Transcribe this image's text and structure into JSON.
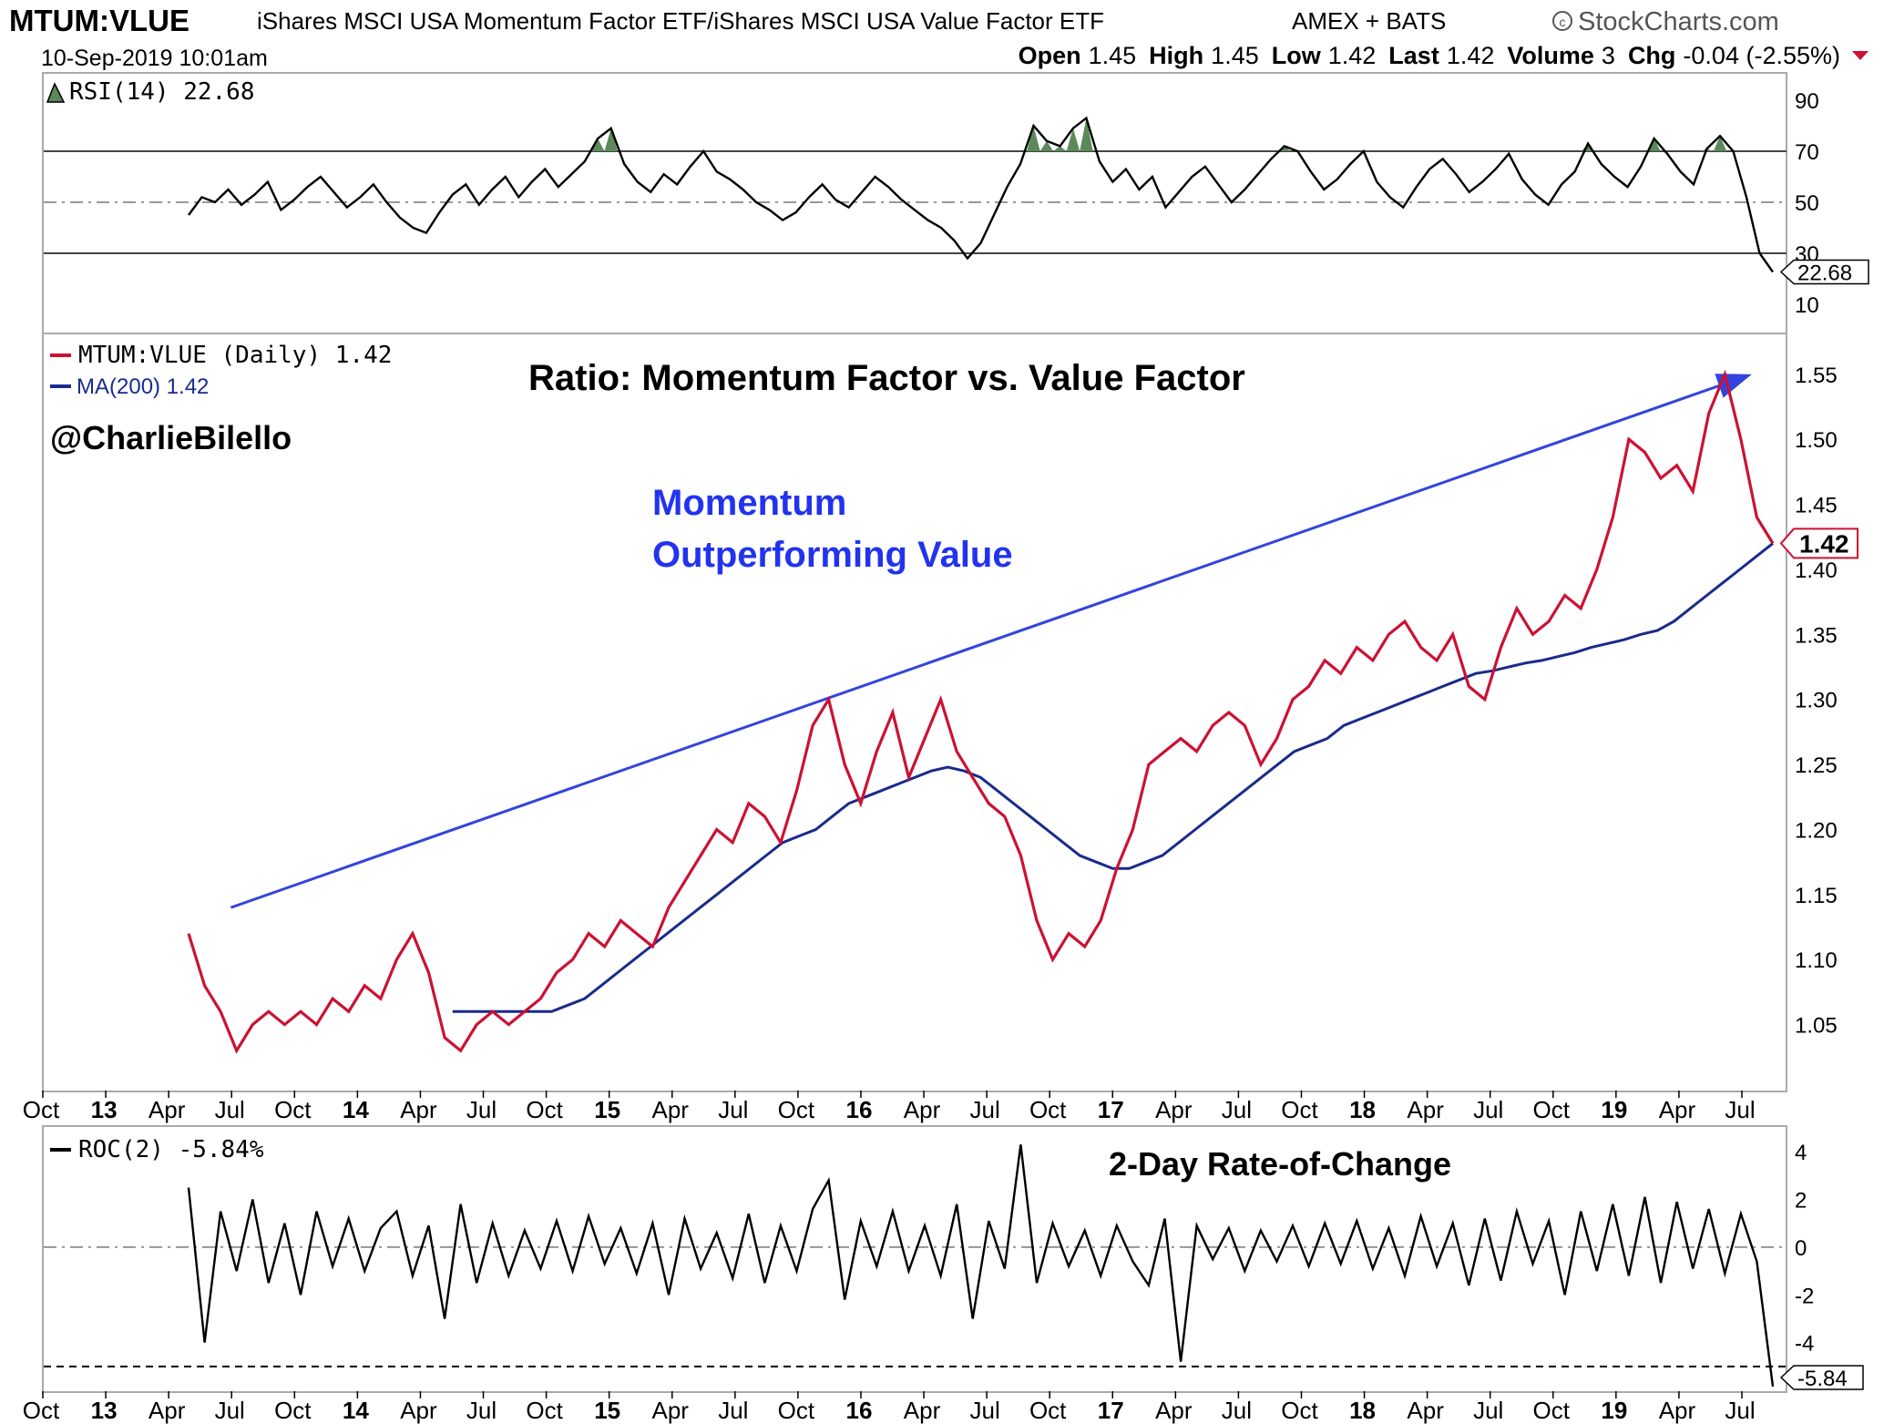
{
  "header": {
    "symbol": "MTUM:VLUE",
    "description": "iShares MSCI USA Momentum Factor ETF/iShares MSCI USA Value Factor ETF",
    "exchange": "AMEX + BATS",
    "brand": "StockCharts.com",
    "date": "10-Sep-2019 10:01am",
    "stats": [
      {
        "label": "Open",
        "value": "1.45"
      },
      {
        "label": "High",
        "value": "1.45"
      },
      {
        "label": "Low",
        "value": "1.42"
      },
      {
        "label": "Last",
        "value": "1.42"
      },
      {
        "label": "Volume",
        "value": "3"
      },
      {
        "label": "Chg",
        "value": "-0.04 (-2.55%)"
      }
    ]
  },
  "x_axis_labels": [
    {
      "label": "Oct",
      "bold": false
    },
    {
      "label": "13",
      "bold": true
    },
    {
      "label": "Apr",
      "bold": false
    },
    {
      "label": "Jul",
      "bold": false
    },
    {
      "label": "Oct",
      "bold": false
    },
    {
      "label": "14",
      "bold": true
    },
    {
      "label": "Apr",
      "bold": false
    },
    {
      "label": "Jul",
      "bold": false
    },
    {
      "label": "Oct",
      "bold": false
    },
    {
      "label": "15",
      "bold": true
    },
    {
      "label": "Apr",
      "bold": false
    },
    {
      "label": "Jul",
      "bold": false
    },
    {
      "label": "Oct",
      "bold": false
    },
    {
      "label": "16",
      "bold": true
    },
    {
      "label": "Apr",
      "bold": false
    },
    {
      "label": "Jul",
      "bold": false
    },
    {
      "label": "Oct",
      "bold": false
    },
    {
      "label": "17",
      "bold": true
    },
    {
      "label": "Apr",
      "bold": false
    },
    {
      "label": "Jul",
      "bold": false
    },
    {
      "label": "Oct",
      "bold": false
    },
    {
      "label": "18",
      "bold": true
    },
    {
      "label": "Apr",
      "bold": false
    },
    {
      "label": "Jul",
      "bold": false
    },
    {
      "label": "Oct",
      "bold": false
    },
    {
      "label": "19",
      "bold": true
    },
    {
      "label": "Apr",
      "bold": false
    },
    {
      "label": "Jul",
      "bold": false
    }
  ],
  "chart_data": [
    {
      "type": "line",
      "panel": "rsi",
      "legend": "RSI(14) 22.68",
      "ylim": [
        0,
        100
      ],
      "yticks": [
        10,
        30,
        50,
        70,
        90
      ],
      "reference_lines": [
        30,
        50,
        70
      ],
      "last_value_label": "22.68",
      "colors": {
        "line": "#000000",
        "overbought_fill": "#5a8a5a"
      },
      "x_start": "2013-06",
      "x_end": "2019-09",
      "series": [
        {
          "values": [
            45,
            52,
            50,
            55,
            49,
            53,
            58,
            47,
            51,
            56,
            60,
            54,
            48,
            52,
            57,
            50,
            44,
            40,
            38,
            46,
            53,
            57,
            49,
            55,
            60,
            52,
            58,
            63,
            56,
            61,
            66,
            75,
            79,
            65,
            58,
            54,
            61,
            57,
            64,
            70,
            62,
            59,
            55,
            50,
            47,
            43,
            46,
            52,
            57,
            51,
            48,
            54,
            60,
            56,
            51,
            47,
            43,
            40,
            35,
            28,
            34,
            45,
            56,
            65,
            80,
            74,
            72,
            79,
            83,
            66,
            58,
            63,
            55,
            60,
            48,
            54,
            60,
            64,
            57,
            50,
            55,
            61,
            67,
            72,
            70,
            62,
            55,
            59,
            65,
            70,
            58,
            52,
            48,
            56,
            63,
            67,
            61,
            54,
            58,
            63,
            69,
            59,
            53,
            49,
            57,
            62,
            73,
            65,
            60,
            56,
            64,
            75,
            69,
            62,
            57,
            71,
            76,
            70,
            52,
            30,
            22.68
          ]
        }
      ]
    },
    {
      "type": "line",
      "panel": "price",
      "title": "Ratio: Momentum Factor vs. Value Factor",
      "ylim": [
        1.0,
        1.58
      ],
      "yticks": [
        1.05,
        1.1,
        1.15,
        1.2,
        1.25,
        1.3,
        1.35,
        1.4,
        1.45,
        1.5,
        1.55
      ],
      "grid": false,
      "legend_placement": "top-left",
      "last_value_label": "1.42",
      "x_start": "2013-06",
      "x_end": "2019-09",
      "series": [
        {
          "name": "MTUM:VLUE (Daily) 1.42",
          "color": "#cc1133",
          "values": [
            1.12,
            1.08,
            1.06,
            1.03,
            1.05,
            1.06,
            1.05,
            1.06,
            1.05,
            1.07,
            1.06,
            1.08,
            1.07,
            1.1,
            1.12,
            1.09,
            1.04,
            1.03,
            1.05,
            1.06,
            1.05,
            1.06,
            1.07,
            1.09,
            1.1,
            1.12,
            1.11,
            1.13,
            1.12,
            1.11,
            1.14,
            1.16,
            1.18,
            1.2,
            1.19,
            1.22,
            1.21,
            1.19,
            1.23,
            1.28,
            1.3,
            1.25,
            1.22,
            1.26,
            1.29,
            1.24,
            1.27,
            1.3,
            1.26,
            1.24,
            1.22,
            1.21,
            1.18,
            1.13,
            1.1,
            1.12,
            1.11,
            1.13,
            1.17,
            1.2,
            1.25,
            1.26,
            1.27,
            1.26,
            1.28,
            1.29,
            1.28,
            1.25,
            1.27,
            1.3,
            1.31,
            1.33,
            1.32,
            1.34,
            1.33,
            1.35,
            1.36,
            1.34,
            1.33,
            1.35,
            1.31,
            1.3,
            1.34,
            1.37,
            1.35,
            1.36,
            1.38,
            1.37,
            1.4,
            1.44,
            1.5,
            1.49,
            1.47,
            1.48,
            1.46,
            1.52,
            1.55,
            1.5,
            1.44,
            1.42
          ]
        },
        {
          "name": "MA(200) 1.42",
          "color": "#1a2a8c",
          "values": [
            null,
            null,
            null,
            null,
            null,
            null,
            null,
            null,
            null,
            null,
            null,
            null,
            null,
            null,
            null,
            null,
            1.06,
            1.06,
            1.06,
            1.06,
            1.06,
            1.06,
            1.06,
            1.065,
            1.07,
            1.08,
            1.09,
            1.1,
            1.11,
            1.12,
            1.13,
            1.14,
            1.15,
            1.16,
            1.17,
            1.18,
            1.19,
            1.195,
            1.2,
            1.21,
            1.22,
            1.225,
            1.23,
            1.235,
            1.24,
            1.245,
            1.248,
            1.245,
            1.24,
            1.23,
            1.22,
            1.21,
            1.2,
            1.19,
            1.18,
            1.175,
            1.17,
            1.17,
            1.175,
            1.18,
            1.19,
            1.2,
            1.21,
            1.22,
            1.23,
            1.24,
            1.25,
            1.26,
            1.265,
            1.27,
            1.28,
            1.285,
            1.29,
            1.295,
            1.3,
            1.305,
            1.31,
            1.315,
            1.32,
            1.322,
            1.325,
            1.328,
            1.33,
            1.333,
            1.336,
            1.34,
            1.343,
            1.346,
            1.35,
            1.353,
            1.36,
            1.37,
            1.38,
            1.39,
            1.4,
            1.41,
            1.42
          ]
        }
      ],
      "trend_arrow": {
        "from": [
          "2013-08",
          1.14
        ],
        "to": [
          "2019-08",
          1.55
        ],
        "color": "#3344dd"
      },
      "annotations": [
        {
          "text": "@CharlieBilello",
          "color": "#000000"
        },
        {
          "text": "Momentum",
          "color": "#2233ee"
        },
        {
          "text": "Outperforming Value",
          "color": "#2233ee"
        }
      ]
    },
    {
      "type": "line",
      "panel": "roc",
      "legend": "ROC(2) -5.84%",
      "title": "2-Day Rate-of-Change",
      "ylim": [
        -6,
        5
      ],
      "yticks": [
        -4,
        -2,
        0,
        2,
        4
      ],
      "reference_lines": [
        0,
        -5
      ],
      "last_value_label": "-5.84",
      "x_start": "2013-06",
      "x_end": "2019-09",
      "series": [
        {
          "values": [
            2.5,
            -4,
            1.5,
            -1,
            2,
            -1.5,
            1,
            -2,
            1.5,
            -0.8,
            1.2,
            -1,
            0.8,
            1.5,
            -1.2,
            0.9,
            -3,
            1.8,
            -1.5,
            1,
            -1.2,
            0.7,
            -0.9,
            1.1,
            -1,
            1.3,
            -0.7,
            0.8,
            -1.1,
            1,
            -2,
            1.2,
            -0.9,
            0.6,
            -1.3,
            1.4,
            -1.5,
            0.9,
            -1,
            1.6,
            2.8,
            -2.2,
            1.1,
            -0.8,
            1.5,
            -1,
            0.9,
            -1.2,
            1.8,
            -3,
            1.1,
            -0.9,
            4.3,
            -1.5,
            1,
            -0.8,
            0.7,
            -1.2,
            0.9,
            -0.6,
            -1.6,
            1.2,
            -4.8,
            0.9,
            -0.5,
            0.8,
            -1,
            0.7,
            -0.6,
            0.9,
            -0.8,
            1,
            -0.7,
            1.1,
            -0.9,
            0.8,
            -1.2,
            1.3,
            -0.8,
            1,
            -1.6,
            1.2,
            -1.4,
            1.5,
            -0.7,
            1.1,
            -2,
            1.5,
            -1,
            1.8,
            -1.2,
            2.1,
            -1.5,
            1.9,
            -0.9,
            1.6,
            -1.1,
            1.4,
            -0.6,
            -5.84
          ]
        }
      ]
    }
  ]
}
